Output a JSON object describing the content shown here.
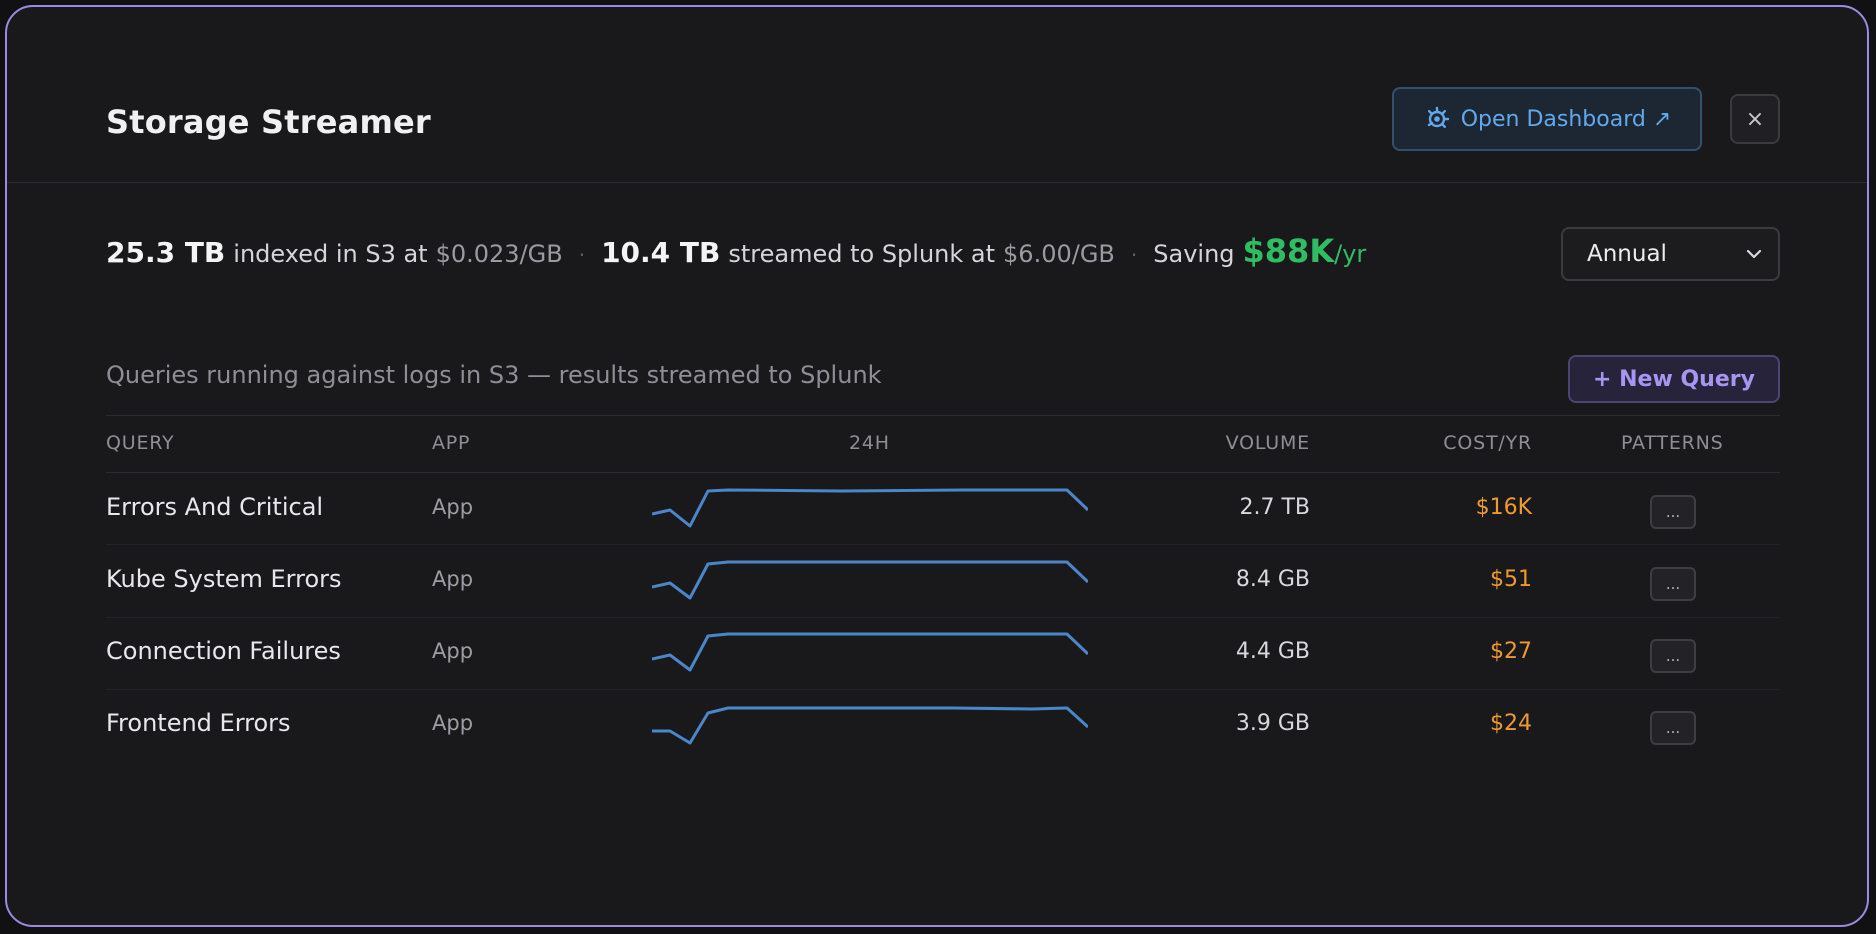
{
  "header": {
    "title": "Storage Streamer",
    "dashboard_button": "Open Dashboard ↗",
    "close_label": "×"
  },
  "stats": {
    "indexed_amount": "25.3 TB",
    "indexed_text": "indexed in S3 at",
    "indexed_rate": "$0.023/GB",
    "separator": "·",
    "streamed_amount": "10.4 TB",
    "streamed_text": "streamed to Splunk at",
    "streamed_rate": "$6.00/GB",
    "saving_label": "Saving",
    "saving_amount": "$88K",
    "saving_unit": "/yr"
  },
  "period_select": {
    "selected": "Annual"
  },
  "queries_section": {
    "title": "Queries running against logs in S3 — results streamed to Splunk",
    "new_query_button": "+ New Query",
    "columns": [
      "QUERY",
      "APP",
      "24H",
      "VOLUME",
      "COST/YR",
      "PATTERNS"
    ],
    "rows": [
      {
        "name": "Errors And Critical",
        "app": "App",
        "volume": "2.7 TB",
        "cost": "$16K",
        "patterns": "..."
      },
      {
        "name": "Kube System Errors",
        "app": "App",
        "volume": "8.4 GB",
        "cost": "$51",
        "patterns": "..."
      },
      {
        "name": "Connection Failures",
        "app": "App",
        "volume": "4.4 GB",
        "cost": "$27",
        "patterns": "..."
      },
      {
        "name": "Frontend Errors",
        "app": "App",
        "volume": "3.9 GB",
        "cost": "$24",
        "patterns": "..."
      }
    ]
  },
  "colors": {
    "accent_blue": "#62a9ec",
    "sparkline": "#4a86c8",
    "saving_green": "#2fbd63",
    "cost_orange": "#ef9a2e",
    "new_query_purple": "#a895f2",
    "modal_border": "#9b8ae0"
  },
  "icons": {
    "dashboard_button": "grafana-icon",
    "close_button": "close-icon",
    "period_select": "chevron-down-icon",
    "row_patterns": "more-icon"
  }
}
